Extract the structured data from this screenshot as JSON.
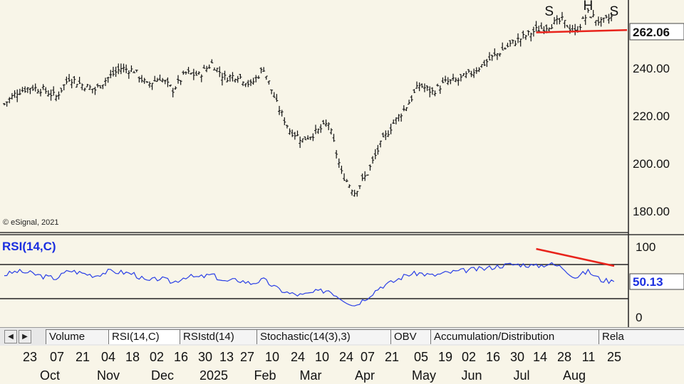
{
  "watermark": "© eSignal, 2021",
  "price_panel": {
    "last_value": "262.06",
    "y_ticks": [
      "240.00",
      "220.00",
      "200.00",
      "180.00"
    ],
    "annotations": [
      "S",
      "H",
      "S"
    ]
  },
  "rsi_panel": {
    "label": "RSI(14,C)",
    "last_value": "50.13",
    "y_ticks": [
      "100",
      "0"
    ]
  },
  "tabs": [
    "Volume",
    "RSI(14,C)",
    "RSIstd(14)",
    "Stochastic(14(3),3)",
    "OBV",
    "Accumulation/Distribution",
    "Rela"
  ],
  "x_axis": {
    "days": [
      "23",
      "07",
      "21",
      "04",
      "18",
      "02",
      "16",
      "30",
      "13",
      "27",
      "10",
      "24",
      "10",
      "24",
      "07",
      "21",
      "05",
      "19",
      "02",
      "16",
      "30",
      "14",
      "28",
      "11",
      "25"
    ],
    "months": [
      "Oct",
      "Nov",
      "Dec",
      "2025",
      "Feb",
      "Mar",
      "Apr",
      "May",
      "Jun",
      "Jul",
      "Aug"
    ]
  },
  "chart_data": [
    {
      "type": "bar",
      "subtype": "ohlc",
      "ylim": [
        172,
        268
      ],
      "y_ticks": [
        180,
        200,
        220,
        240
      ],
      "last_value": 262.06,
      "series": [
        {
          "x": [
            "2024-09-30",
            "2024-10-07",
            "2024-10-14",
            "2024-10-21",
            "2024-10-28",
            "2024-11-04",
            "2024-11-11",
            "2024-11-18",
            "2024-11-25",
            "2024-12-02",
            "2024-12-09",
            "2024-12-16",
            "2024-12-23",
            "2024-12-30",
            "2025-01-06",
            "2025-01-13",
            "2025-01-20",
            "2025-01-27",
            "2025-02-03",
            "2025-02-10",
            "2025-02-17",
            "2025-02-24",
            "2025-03-03",
            "2025-03-10",
            "2025-03-17",
            "2025-03-24",
            "2025-03-31",
            "2025-04-07",
            "2025-04-14",
            "2025-04-21",
            "2025-04-28",
            "2025-05-05",
            "2025-05-12",
            "2025-05-19",
            "2025-05-26",
            "2025-06-02",
            "2025-06-09",
            "2025-06-16",
            "2025-06-23",
            "2025-06-30",
            "2025-07-07",
            "2025-07-14",
            "2025-07-21",
            "2025-07-28",
            "2025-08-04",
            "2025-08-11",
            "2025-08-18",
            "2025-08-25"
          ],
          "values": [
            225,
            230,
            232,
            231,
            228,
            236,
            233,
            231,
            236,
            240,
            239,
            233,
            236,
            231,
            238,
            237,
            242,
            236,
            237,
            233,
            240,
            225,
            214,
            210,
            213,
            217,
            196,
            188,
            196,
            208,
            217,
            224,
            233,
            230,
            234,
            235,
            238,
            242,
            246,
            250,
            253,
            256,
            258,
            260,
            255,
            263,
            259,
            262
          ]
        }
      ],
      "annotations": [
        {
          "text": "S",
          "x": "2025-07-21"
        },
        {
          "text": "H",
          "x": "2025-08-11"
        },
        {
          "text": "S",
          "x": "2025-08-25"
        }
      ],
      "trendline": {
        "type": "neckline",
        "from": [
          "2025-07-14",
          255
        ],
        "to": [
          "2025-09-01",
          256
        ]
      }
    },
    {
      "type": "line",
      "title": "RSI(14,C)",
      "ylim": [
        0,
        100
      ],
      "y_ticks": [
        0,
        100
      ],
      "reference_lines": [
        70,
        30
      ],
      "last_value": 50.13,
      "series": [
        {
          "name": "RSI(14,C)",
          "x": [
            "2024-09-30",
            "2024-10-07",
            "2024-10-14",
            "2024-10-21",
            "2024-10-28",
            "2024-11-04",
            "2024-11-11",
            "2024-11-18",
            "2024-11-25",
            "2024-12-02",
            "2024-12-09",
            "2024-12-16",
            "2024-12-23",
            "2024-12-30",
            "2025-01-06",
            "2025-01-13",
            "2025-01-20",
            "2025-01-27",
            "2025-02-03",
            "2025-02-10",
            "2025-02-17",
            "2025-02-24",
            "2025-03-03",
            "2025-03-10",
            "2025-03-17",
            "2025-03-24",
            "2025-03-31",
            "2025-04-07",
            "2025-04-14",
            "2025-04-21",
            "2025-04-28",
            "2025-05-05",
            "2025-05-12",
            "2025-05-19",
            "2025-05-26",
            "2025-06-02",
            "2025-06-09",
            "2025-06-16",
            "2025-06-23",
            "2025-06-30",
            "2025-07-07",
            "2025-07-14",
            "2025-07-21",
            "2025-07-28",
            "2025-08-04",
            "2025-08-11",
            "2025-08-18",
            "2025-08-25"
          ],
          "values": [
            58,
            62,
            60,
            56,
            54,
            63,
            60,
            57,
            62,
            61,
            59,
            50,
            54,
            49,
            56,
            55,
            58,
            50,
            52,
            48,
            52,
            42,
            36,
            34,
            38,
            40,
            30,
            22,
            32,
            44,
            50,
            58,
            60,
            57,
            60,
            62,
            64,
            65,
            68,
            70,
            70,
            68,
            71,
            67,
            55,
            62,
            52,
            50
          ]
        }
      ],
      "trendline": {
        "type": "divergence",
        "from": [
          "2025-07-14",
          80
        ],
        "to": [
          "2025-09-01",
          70
        ]
      }
    }
  ]
}
